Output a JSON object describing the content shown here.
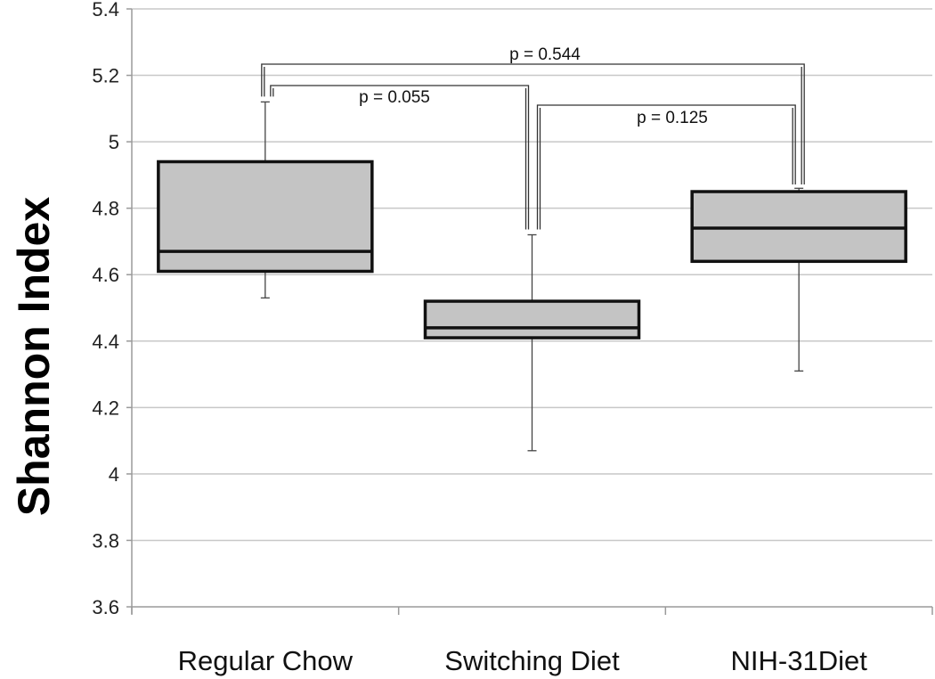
{
  "chart_data": {
    "type": "box",
    "ylabel": "Shannon Index",
    "xlabel": "",
    "ylim": [
      3.6,
      5.4
    ],
    "yticks": [
      "3.6",
      "3.8",
      "4",
      "4.2",
      "4.4",
      "4.6",
      "4.8",
      "5",
      "5.2",
      "5.4"
    ],
    "grid": true,
    "categories": [
      "Regular Chow",
      "Switching Diet",
      "NIH-31Diet"
    ],
    "boxes": [
      {
        "min": 4.53,
        "q1": 4.61,
        "median": 4.67,
        "q3": 4.94,
        "max": 5.12
      },
      {
        "min": 4.07,
        "q1": 4.41,
        "median": 4.44,
        "q3": 4.52,
        "max": 4.72
      },
      {
        "min": 4.31,
        "q1": 4.64,
        "median": 4.74,
        "q3": 4.85,
        "max": 4.86
      }
    ],
    "comparisons": [
      {
        "from": 0,
        "to": 1,
        "label": "p = 0.055"
      },
      {
        "from": 1,
        "to": 2,
        "label": "p = 0.125"
      },
      {
        "from": 0,
        "to": 2,
        "label": "p = 0.544"
      }
    ]
  }
}
